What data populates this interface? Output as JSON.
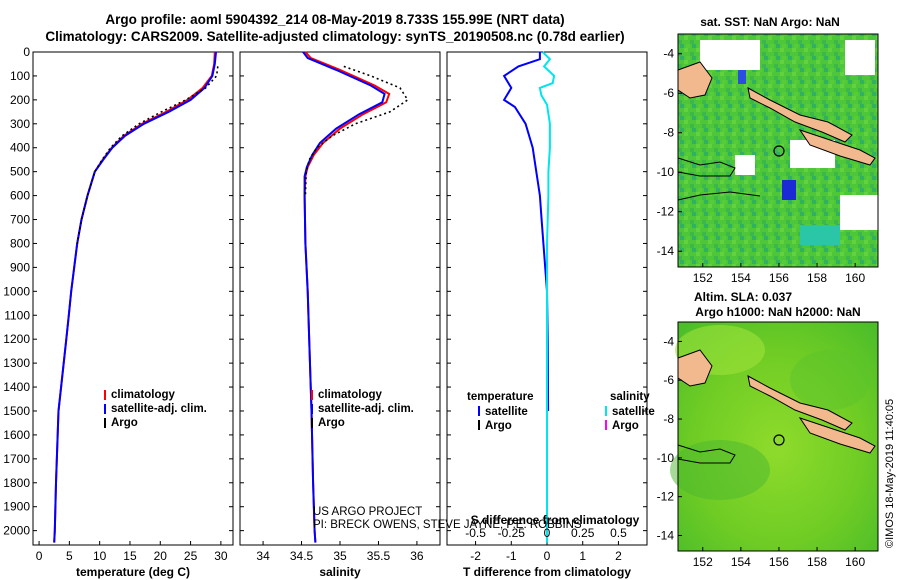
{
  "header": {
    "line1": "Argo profile: aoml 5904392_214 08-May-2019 8.733S 155.99E (NRT data)",
    "line2": "Climatology: CARS2009. Satellite-adjusted climatology: synTS_20190508.nc (0.78d earlier)"
  },
  "colors": {
    "climatology": "#ff0000",
    "satellite": "#0000ff",
    "argo": "#000000",
    "sat_salinity": "#00e5ee",
    "argo_salinity_diff": "#ff00ff",
    "land": "#f2b98e"
  },
  "chart_data": [
    {
      "id": "temperature",
      "type": "line",
      "xlabel": "temperature (deg C)",
      "ylabel": "",
      "xlim": [
        -1,
        32
      ],
      "ylim": [
        2060,
        0
      ],
      "xticks": [
        0,
        5,
        10,
        15,
        20,
        25,
        30
      ],
      "yticks": [
        0,
        100,
        200,
        300,
        400,
        500,
        600,
        700,
        800,
        900,
        1000,
        1100,
        1200,
        1300,
        1400,
        1500,
        1600,
        1700,
        1800,
        1900,
        2000
      ],
      "series": [
        {
          "name": "climatology",
          "color": "#ff0000",
          "dash": false,
          "x": [
            29.0,
            28.9,
            28.5,
            27.0,
            24.5,
            21.0,
            17.0,
            14.0,
            12.0,
            10.5,
            9.2,
            8.0,
            7.0,
            6.3,
            5.8,
            5.3,
            4.9,
            4.5,
            3.2,
            2.8,
            2.6,
            2.5
          ],
          "y": [
            0,
            50,
            100,
            150,
            200,
            250,
            300,
            350,
            400,
            450,
            500,
            600,
            700,
            800,
            900,
            1000,
            1100,
            1200,
            1500,
            1800,
            2000,
            2050
          ]
        },
        {
          "name": "satellite-adj. clim.",
          "color": "#0000ff",
          "dash": false,
          "x": [
            29.2,
            29.0,
            28.6,
            27.3,
            25.0,
            21.4,
            17.3,
            14.2,
            12.1,
            10.6,
            9.2,
            8.0,
            7.0,
            6.3,
            5.8,
            5.3,
            4.9,
            4.5,
            3.2,
            2.8,
            2.6,
            2.5
          ],
          "y": [
            0,
            50,
            100,
            150,
            200,
            250,
            300,
            350,
            400,
            450,
            500,
            600,
            700,
            800,
            900,
            1000,
            1100,
            1200,
            1500,
            1800,
            2000,
            2050
          ]
        },
        {
          "name": "Argo",
          "color": "#000000",
          "dash": true,
          "x": [
            29.5,
            29.3,
            27.5,
            24.2,
            20.2,
            16.5,
            13.7,
            11.8,
            10.4,
            9.2,
            8.0,
            7.0,
            6.3
          ],
          "y": [
            60,
            100,
            150,
            200,
            250,
            300,
            350,
            400,
            450,
            500,
            600,
            700,
            800
          ]
        }
      ],
      "legend": [
        "climatology",
        "satellite-adj. clim.",
        "Argo"
      ]
    },
    {
      "id": "salinity",
      "type": "line",
      "xlabel": "salinity",
      "ylabel": "",
      "xlim": [
        33.7,
        36.3
      ],
      "ylim": [
        2060,
        0
      ],
      "xticks": [
        34,
        34.5,
        35,
        35.5,
        36
      ],
      "series": [
        {
          "name": "climatology",
          "color": "#ff0000",
          "dash": false,
          "x": [
            34.55,
            34.62,
            35.0,
            35.45,
            35.64,
            35.6,
            35.3,
            35.0,
            34.78,
            34.66,
            34.58,
            34.55,
            34.54,
            34.55,
            34.58,
            34.6,
            34.63,
            34.65,
            34.67,
            34.68
          ],
          "y": [
            0,
            25,
            75,
            140,
            175,
            210,
            260,
            320,
            380,
            430,
            480,
            520,
            600,
            800,
            1000,
            1200,
            1500,
            1800,
            2000,
            2050
          ]
        },
        {
          "name": "satellite-adj. clim.",
          "color": "#0000ff",
          "dash": false,
          "x": [
            34.52,
            34.58,
            34.95,
            35.4,
            35.58,
            35.55,
            35.25,
            34.95,
            34.74,
            34.64,
            34.57,
            34.54,
            34.54,
            34.55,
            34.58,
            34.6,
            34.63,
            34.65,
            34.67,
            34.68
          ],
          "y": [
            0,
            25,
            75,
            140,
            175,
            210,
            260,
            320,
            380,
            430,
            480,
            520,
            600,
            800,
            1000,
            1200,
            1500,
            1800,
            2000,
            2050
          ]
        },
        {
          "name": "Argo",
          "color": "#000000",
          "dash": true,
          "x": [
            35.05,
            35.4,
            35.78,
            35.88,
            35.65,
            35.2,
            34.9,
            34.7,
            34.6,
            34.56,
            34.55
          ],
          "y": [
            60,
            100,
            150,
            200,
            250,
            300,
            350,
            400,
            450,
            500,
            600
          ]
        }
      ],
      "legend": [
        "climatology",
        "satellite-adj. clim.",
        "Argo"
      ],
      "credits": [
        "US ARGO PROJECT",
        "PI: BRECK OWENS, STEVE JAYNE, P.E. ROBBINS"
      ]
    },
    {
      "id": "difference",
      "type": "line",
      "xlabel": "T difference from climatology",
      "top_xlabel": "S difference from climatology",
      "ylabel": "",
      "xlim": [
        -2.8,
        2.8
      ],
      "ylim": [
        2060,
        0
      ],
      "xticks": [
        -2,
        -1,
        0,
        1,
        2
      ],
      "top_xticks": [
        -0.5,
        -0.25,
        0,
        0.25,
        0.5
      ],
      "top_xlim": [
        -0.7,
        0.7
      ],
      "series": [
        {
          "name": "temperature satellite",
          "color": "#0000ff",
          "dash": false,
          "axis": "T",
          "x": [
            -0.2,
            -0.2,
            -0.8,
            -1.2,
            -1.0,
            -1.2,
            -0.9,
            -0.6,
            -0.4,
            -0.3,
            -0.2,
            -0.15,
            -0.1,
            -0.05,
            0,
            0.02,
            0.03
          ],
          "y": [
            0,
            30,
            60,
            100,
            150,
            200,
            230,
            300,
            400,
            500,
            600,
            700,
            800,
            900,
            1000,
            1200,
            1500
          ]
        },
        {
          "name": "salinity satellite",
          "color": "#00e5ee",
          "dash": false,
          "axis": "S",
          "x": [
            -0.03,
            0.02,
            -0.02,
            0.05,
            0.04,
            -0.05,
            -0.04,
            0.0,
            0.02,
            0.02,
            0.01,
            0.01,
            0.0,
            0.0,
            0.0
          ],
          "y": [
            0,
            30,
            60,
            100,
            130,
            150,
            180,
            220,
            300,
            400,
            500,
            600,
            800,
            1000,
            2050
          ]
        }
      ],
      "legend_left": [
        "temperature",
        "satellite",
        "Argo"
      ],
      "legend_right": [
        "salinity",
        "satellite",
        "Argo"
      ]
    }
  ],
  "maps": {
    "sst": {
      "title": "sat. SST: NaN Argo: NaN",
      "xticks": [
        "152",
        "154",
        "156",
        "158",
        "160"
      ],
      "yticks": [
        "-4",
        "-6",
        "-8",
        "-10",
        "-12",
        "-14"
      ]
    },
    "sla": {
      "title1": "Altim. SLA: 0.037",
      "title2": "Argo h1000: NaN h2000: NaN",
      "xticks": [
        "152",
        "154",
        "156",
        "158",
        "160"
      ],
      "yticks": [
        "-4",
        "-6",
        "-8",
        "-10",
        "-12",
        "-14"
      ]
    }
  },
  "watermark": "©IMOS 18-May-2019 11:40:05"
}
